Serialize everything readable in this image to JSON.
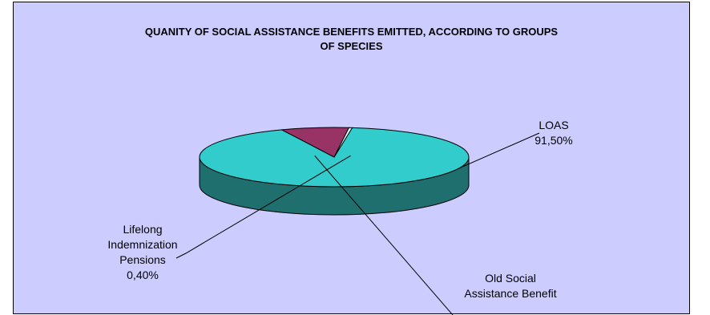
{
  "chart_data": {
    "type": "pie",
    "title_lines": [
      "QUANITY OF SOCIAL ASSISTANCE BENEFITS EMITTED, ACCORDING TO GROUPS",
      "OF SPECIES"
    ],
    "series": [
      {
        "label_lines": [
          "LOAS",
          "91,50%"
        ],
        "value": 91.5,
        "color": "#33cccc",
        "side_color": "#1f6f6f"
      },
      {
        "label_lines": [
          "Old Social",
          "Assistance Benefit"
        ],
        "value": 8.1,
        "color": "#993366",
        "side_color": "#551f37"
      },
      {
        "label_lines": [
          "Lifelong",
          "Indemnization",
          "Pensions",
          "0,40%"
        ],
        "value": 0.4,
        "color": "#ccffff",
        "side_color": "#6f8f8f"
      }
    ]
  }
}
